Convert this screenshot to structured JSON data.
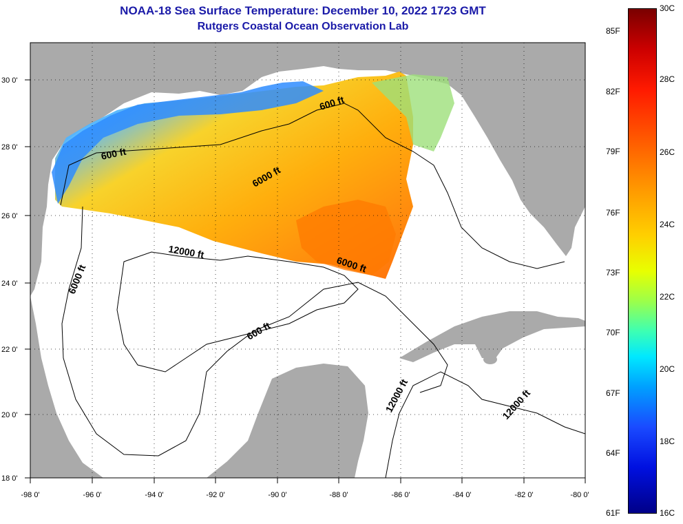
{
  "title": {
    "line1": "NOAA-18 Sea Surface Temperature:  December 10, 2022 1723 GMT",
    "line2": "Rutgers Coastal Ocean Observation Lab"
  },
  "axes": {
    "lon_labels": [
      "-98 0'",
      "-96 0'",
      "-94 0'",
      "-92 0'",
      "-90 0'",
      "-88 0'",
      "-86 0'",
      "-84 0'",
      "-82 0'",
      "-80 0'"
    ],
    "lat_labels": [
      "30 0'",
      "28 0'",
      "26 0'",
      "24 0'",
      "22 0'",
      "20 0'",
      "18 0'"
    ]
  },
  "contours": [
    "600 ft",
    "6000 ft",
    "12000 ft",
    "6000 ft",
    "600 ft",
    "600 ft",
    "6000 ft",
    "12000 ft",
    "12000 ft"
  ],
  "colorbar": {
    "fahrenheit": [
      "85F",
      "82F",
      "79F",
      "76F",
      "73F",
      "70F",
      "67F",
      "64F",
      "61F"
    ],
    "celsius": [
      "30C",
      "28C",
      "26C",
      "24C",
      "22C",
      "20C",
      "18C",
      "16C"
    ]
  },
  "colors": {
    "land": "#aaaaaa",
    "title": "#1a1aa8",
    "warm": "#ff8800",
    "cool": "#1a7aff"
  }
}
